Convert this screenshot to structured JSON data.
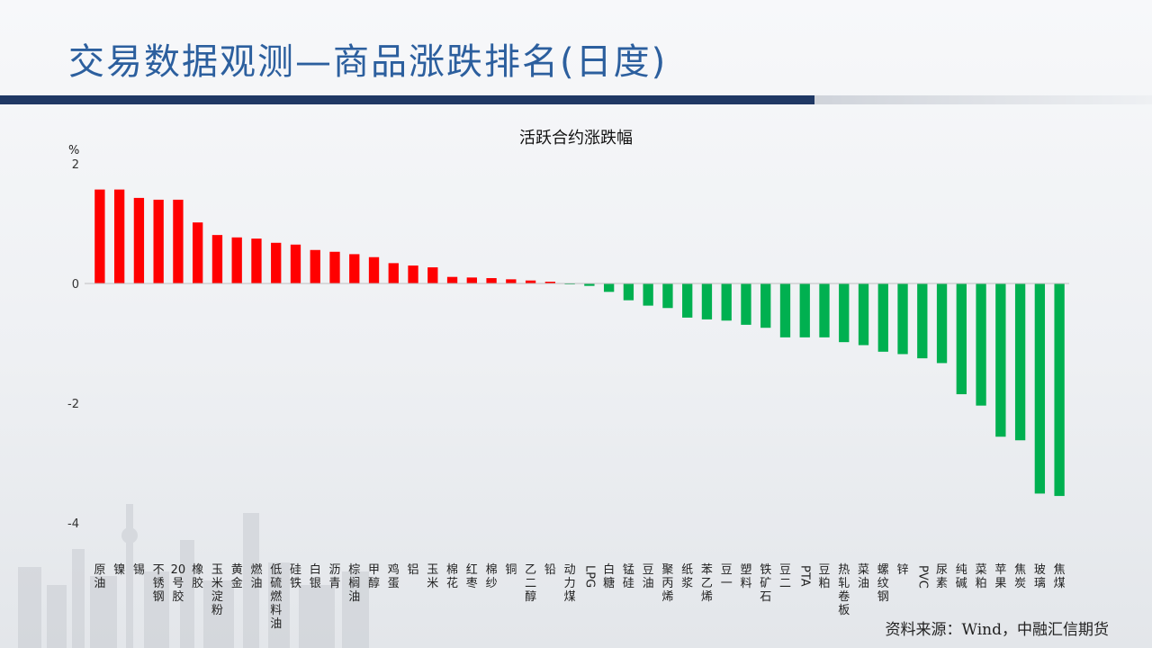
{
  "page": {
    "title": "交易数据观测—商品涨跌排名(日度)",
    "source": "资料来源：Wind，中融汇信期货"
  },
  "colors": {
    "up": "#ff0000",
    "down": "#00b050",
    "title": "#2c5f9e",
    "rule": "#1f3864"
  },
  "chart_data": {
    "type": "bar",
    "title": "活跃合约涨跌幅",
    "ylabel": "%",
    "ylim": [
      -4,
      2
    ],
    "yticks": [
      2,
      0,
      -2,
      -4
    ],
    "grid": false,
    "categories": [
      "原油",
      "镍",
      "锡",
      "不锈钢",
      "20号胶",
      "橡胶",
      "玉米淀粉",
      "黄金",
      "燃油",
      "低硫燃料油",
      "硅铁",
      "白银",
      "沥青",
      "棕榈油",
      "甲醇",
      "鸡蛋",
      "铝",
      "玉米",
      "棉花",
      "红枣",
      "棉纱",
      "铜",
      "乙二醇",
      "铅",
      "动力煤",
      "LPG",
      "白糖",
      "锰硅",
      "豆油",
      "聚丙烯",
      "纸浆",
      "苯乙烯",
      "豆一",
      "塑料",
      "铁矿石",
      "豆二",
      "PTA",
      "豆粕",
      "热轧卷板",
      "菜油",
      "螺纹钢",
      "锌",
      "PVC",
      "尿素",
      "纯碱",
      "菜粕",
      "苹果",
      "焦炭",
      "玻璃",
      "焦煤"
    ],
    "values": [
      1.57,
      1.57,
      1.43,
      1.4,
      1.4,
      1.02,
      0.81,
      0.77,
      0.75,
      0.68,
      0.65,
      0.56,
      0.53,
      0.49,
      0.44,
      0.34,
      0.3,
      0.27,
      0.11,
      0.1,
      0.09,
      0.07,
      0.05,
      0.03,
      -0.01,
      -0.04,
      -0.14,
      -0.28,
      -0.37,
      -0.41,
      -0.57,
      -0.6,
      -0.62,
      -0.69,
      -0.74,
      -0.9,
      -0.9,
      -0.9,
      -0.98,
      -1.03,
      -1.14,
      -1.18,
      -1.25,
      -1.33,
      -1.85,
      -2.04,
      -2.56,
      -2.62,
      -3.51,
      -3.55
    ]
  }
}
